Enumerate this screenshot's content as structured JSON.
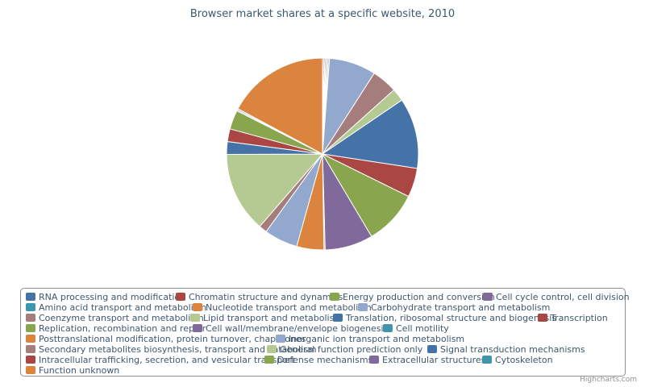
{
  "chart_data": {
    "type": "pie",
    "title": "Browser market shares at a specific website, 2010",
    "credits": "Highcharts.com",
    "legend_placement": "bottom",
    "slices": [
      {
        "name": "RNA processing and modification",
        "value": 0.2,
        "color": "#4572A7"
      },
      {
        "name": "Chromatin structure and dynamics",
        "value": 0.2,
        "color": "#AA4643"
      },
      {
        "name": "Energy production and conversion",
        "value": 0.2,
        "color": "#89A54E"
      },
      {
        "name": "Cell cycle control, cell division",
        "value": 0.2,
        "color": "#80699B"
      },
      {
        "name": "Amino acid transport and metabolism",
        "value": 0.2,
        "color": "#3D96AE"
      },
      {
        "name": "Nucleotide transport and metabolism",
        "value": 0.2,
        "color": "#DB843D"
      },
      {
        "name": "Carbohydrate transport and metabolism",
        "value": 8.1,
        "color": "#92A8CD"
      },
      {
        "name": "Coenzyme transport and metabolism",
        "value": 4.4,
        "color": "#A47D7C"
      },
      {
        "name": "Lipid transport and metabolism",
        "value": 2.2,
        "color": "#B5CA92"
      },
      {
        "name": "Translation, ribosomal structure and biogenesis",
        "value": 12.2,
        "color": "#4572A7"
      },
      {
        "name": "Transcription",
        "value": 5.0,
        "color": "#AA4643"
      },
      {
        "name": "Replication, recombination and repair",
        "value": 9.4,
        "color": "#89A54E"
      },
      {
        "name": "Cell wall/membrane/envelope biogenesis",
        "value": 8.3,
        "color": "#80699B"
      },
      {
        "name": "Cell motility",
        "value": 0.2,
        "color": "#3D96AE"
      },
      {
        "name": "Posttranslational modification, protein turnover, chaperones",
        "value": 4.7,
        "color": "#DB843D"
      },
      {
        "name": "Inorganic ion transport and metabolism",
        "value": 5.8,
        "color": "#92A8CD"
      },
      {
        "name": "Secondary metabolites biosynthesis, transport and catabolism",
        "value": 1.4,
        "color": "#A47D7C"
      },
      {
        "name": "General function prediction only",
        "value": 13.9,
        "color": "#B5CA92"
      },
      {
        "name": "Signal transduction mechanisms",
        "value": 2.2,
        "color": "#4572A7"
      },
      {
        "name": "Intracellular trafficking, secretion, and vesicular transport",
        "value": 2.2,
        "color": "#AA4643"
      },
      {
        "name": "Defense mechanisms",
        "value": 3.3,
        "color": "#89A54E"
      },
      {
        "name": "Extracellular structures",
        "value": 0.2,
        "color": "#80699B"
      },
      {
        "name": "Cytoskeleton",
        "value": 0.2,
        "color": "#3D96AE"
      },
      {
        "name": "Function unknown",
        "value": 17.6,
        "color": "#DB843D"
      }
    ]
  }
}
